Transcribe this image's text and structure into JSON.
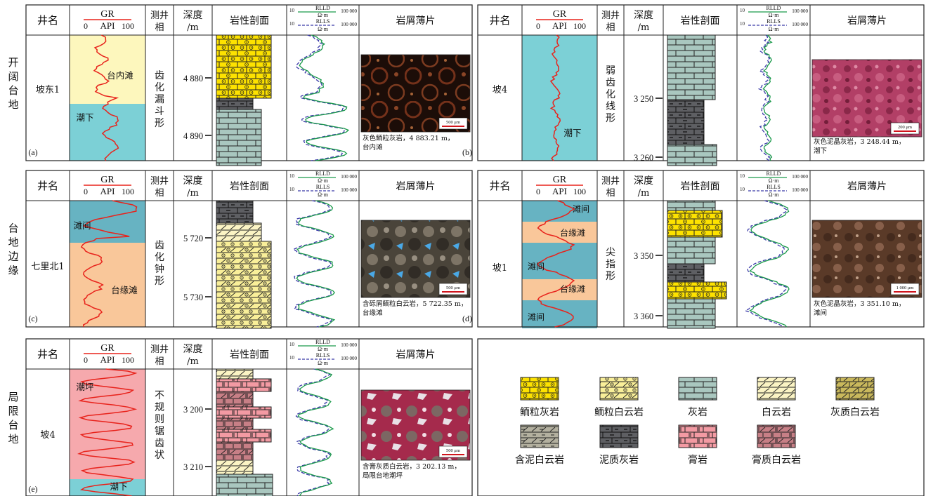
{
  "headers": {
    "well": "井名",
    "gr_name": "GR",
    "gr_min": "0",
    "gr_unit": "API",
    "gr_max": "100",
    "facies": [
      "测井",
      "相"
    ],
    "depth": [
      "深度",
      "/m"
    ],
    "litho": "岩性剖面",
    "rlld": "RLLD",
    "rlls": "RLLS",
    "res_unit": "Ω·m",
    "res_min": "10",
    "res_max": "100 000",
    "thin": "岩屑薄片"
  },
  "row_labels": [
    [
      "开",
      "阔",
      "台",
      "地"
    ],
    [
      "台",
      "地",
      "边",
      "缘"
    ],
    [
      "局",
      "限",
      "台",
      "地"
    ]
  ],
  "panels": [
    {
      "label": "(a)",
      "well": "坡东1",
      "facies": [
        "齿",
        "化",
        "漏",
        "斗",
        "形"
      ],
      "depths": [
        "4 880",
        "4 890"
      ],
      "zones": [
        "台内滩",
        "潮下"
      ],
      "thin_scale": "500 μm",
      "caption": [
        "灰色鲕粒灰岩，4 883.21 m，",
        "台内滩"
      ]
    },
    {
      "label": "(b)",
      "well": "坡4",
      "facies": [
        "弱",
        "齿",
        "化",
        "线",
        "形"
      ],
      "depths": [
        "3 250",
        "3 260"
      ],
      "zones": [
        "潮下"
      ],
      "thin_scale": "200 μm",
      "caption": [
        "灰色泥晶灰岩，3 248.44 m，",
        "潮下"
      ]
    },
    {
      "label": "(c)",
      "well": "七里北1",
      "facies": [
        "齿",
        "化",
        "钟",
        "形"
      ],
      "depths": [
        "5 720",
        "5 730"
      ],
      "zones": [
        "滩间",
        "台缘滩"
      ],
      "thin_scale": "500 μm",
      "caption": [
        "含砾屑鲕粒白云岩，5 722.35 m，",
        "台缘滩"
      ]
    },
    {
      "label": "(d)",
      "well": "坡1",
      "facies": [
        "尖",
        "指",
        "形"
      ],
      "depths": [
        "3 350",
        "3 360"
      ],
      "zones": [
        "滩间",
        "台缘滩",
        "滩间",
        "台缘滩",
        "滩间"
      ],
      "thin_scale": "1 000 μm",
      "caption": [
        "灰色泥晶灰岩，3 351.10 m，",
        "滩间"
      ]
    },
    {
      "label": "(e)",
      "well": "坡4",
      "facies": [
        "不",
        "规",
        "则",
        "锯",
        "齿",
        "状"
      ],
      "depths": [
        "3 200",
        "3 210"
      ],
      "zones": [
        "潮坪",
        "潮下"
      ],
      "thin_scale": "500 μm",
      "caption": [
        "含膏灰质白云岩，3 202.13 m，",
        "局限台地潮坪"
      ]
    }
  ],
  "legend": [
    "鲕粒灰岩",
    "鲕粒白云岩",
    "灰岩",
    "白云岩",
    "灰质白云岩",
    "含泥白云岩",
    "泥质灰岩",
    "膏岩",
    "膏质白云岩"
  ],
  "colors": {
    "gr_curve": "#e8231c",
    "rlld": "#1a9a4a",
    "rlls": "#3a3aa8",
    "yellow_bg": "#fdf7bd",
    "blue_bg": "#7cd0d6",
    "teal_bg": "#67b3c2",
    "orange_bg": "#f9c79a",
    "pink_bg": "#f6a9ad",
    "oolitic_ls": "#fde200",
    "oolitic_dol": "#f9ef99",
    "limestone": "#a9c7bf",
    "dolomite": "#fbf4c4",
    "calc_dol": "#c9b85c",
    "shaly_dol": "#b3b09f",
    "argil_ls": "#5e5f63",
    "gypsum": "#f39aa3",
    "gyps_dol": "#c77f86"
  }
}
